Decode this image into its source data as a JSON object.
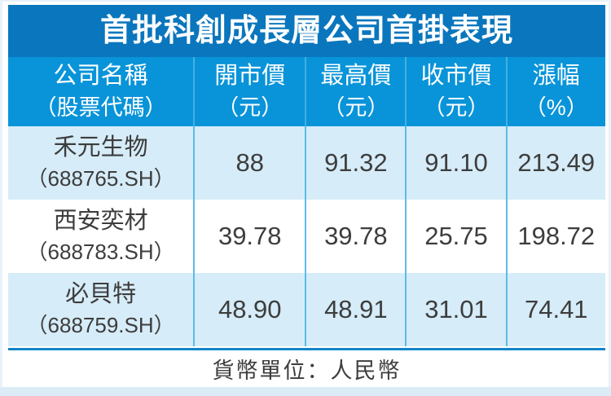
{
  "title": "首批科創成長層公司首掛表現",
  "table": {
    "columns": [
      {
        "line1": "公司名稱",
        "line2": "（股票代碼）"
      },
      {
        "line1": "開市價",
        "line2": "（元）"
      },
      {
        "line1": "最高價",
        "line2": "（元）"
      },
      {
        "line1": "收市價",
        "line2": "（元）"
      },
      {
        "line1": "漲幅",
        "line2": "（%）"
      }
    ],
    "rows": [
      {
        "name": "禾元生物",
        "code": "（688765.SH）",
        "open": "88",
        "high": "91.32",
        "close": "91.10",
        "change": "213.49"
      },
      {
        "name": "西安奕材",
        "code": "（688783.SH）",
        "open": "39.78",
        "high": "39.78",
        "close": "25.75",
        "change": "198.72"
      },
      {
        "name": "必貝特",
        "code": "（688759.SH）",
        "open": "48.90",
        "high": "48.91",
        "close": "31.01",
        "change": "74.41"
      }
    ],
    "footnote": "貨幣單位：人民幣"
  },
  "chart_data": {
    "type": "table",
    "title": "首批科創成長層公司首掛表現",
    "columns": [
      "公司名稱（股票代碼）",
      "開市價（元）",
      "最高價（元）",
      "收市價（元）",
      "漲幅（%）"
    ],
    "rows": [
      [
        "禾元生物（688765.SH）",
        88,
        91.32,
        91.1,
        213.49
      ],
      [
        "西安奕材（688783.SH）",
        39.78,
        39.78,
        25.75,
        198.72
      ],
      [
        "必貝特（688759.SH）",
        48.9,
        48.91,
        31.01,
        74.41
      ]
    ],
    "footnote": "貨幣單位：人民幣",
    "currency": "人民幣"
  },
  "colors": {
    "title_bar": "#0a76bd",
    "header_bar": "#0994d9",
    "row_light": "#d6ecf8",
    "row_white": "#ffffff",
    "divider_header": "#42b0e2",
    "divider_row": "#5cbce8",
    "rule": "#1285c9",
    "text_dark": "#3d3d3d",
    "page_edge": "#e7f2fa",
    "bottom_strip": "#dcecf7"
  }
}
